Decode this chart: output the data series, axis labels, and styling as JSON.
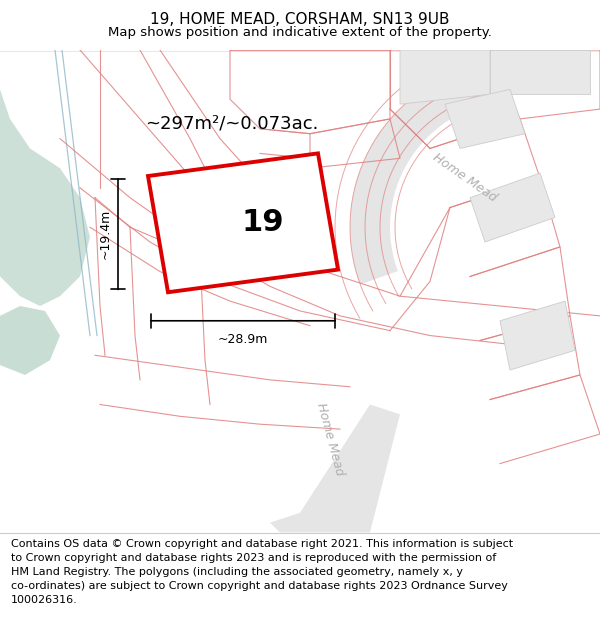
{
  "title": "19, HOME MEAD, CORSHAM, SN13 9UB",
  "subtitle": "Map shows position and indicative extent of the property.",
  "footer": "Contains OS data © Crown copyright and database right 2021. This information is subject\nto Crown copyright and database rights 2023 and is reproduced with the permission of\nHM Land Registry. The polygons (including the associated geometry, namely x, y\nco-ordinates) are subject to Crown copyright and database rights 2023 Ordnance Survey\n100026316.",
  "area_label": "~297m²/~0.073ac.",
  "width_label": "~28.9m",
  "height_label": "~19.4m",
  "plot_number": "19",
  "green_area_color": "#cde0d8",
  "green_area2_color": "#c8ddd4",
  "road_fill_color": "#e5e5e5",
  "parcel_line_color": "#e08080",
  "parcel_fill_color": "#eeeeee",
  "red_line_color": "#dd0000",
  "gray_line_color": "#c8c8c8",
  "road_label_color": "#b0b0b0",
  "blue_line_color": "#90b8c8",
  "title_fontsize": 11,
  "subtitle_fontsize": 9.5,
  "footer_fontsize": 8,
  "area_label_fontsize": 13,
  "plot_number_fontsize": 22,
  "measurement_fontsize": 9
}
